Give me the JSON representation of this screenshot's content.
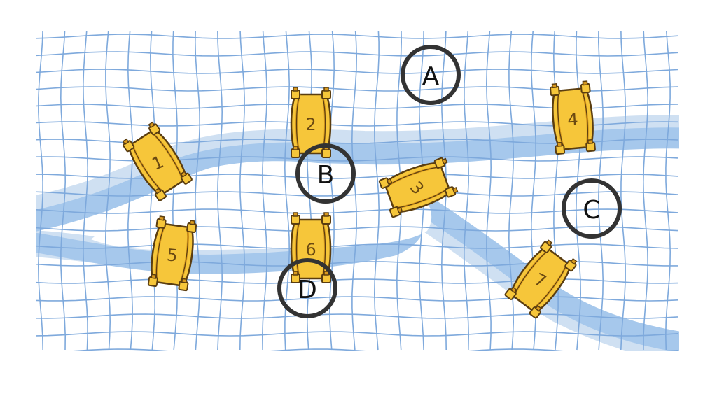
{
  "colors": {
    "background": "#ffffff",
    "map_fill": "#ffffff",
    "grid": "#7ea9dc",
    "river": "#a6c8ec",
    "river_shadow": "#cfe0f2",
    "bridge_fill": "#f6c63a",
    "bridge_shade": "#d99a1e",
    "bridge_outline": "#5a3d10",
    "label_ring": "#333333",
    "label_text": "#111111"
  },
  "land_labels": [
    "A",
    "B",
    "C",
    "D"
  ],
  "bridges": [
    {
      "number": "1"
    },
    {
      "number": "2"
    },
    {
      "number": "3"
    },
    {
      "number": "4"
    },
    {
      "number": "5"
    },
    {
      "number": "6"
    },
    {
      "number": "7"
    }
  ]
}
